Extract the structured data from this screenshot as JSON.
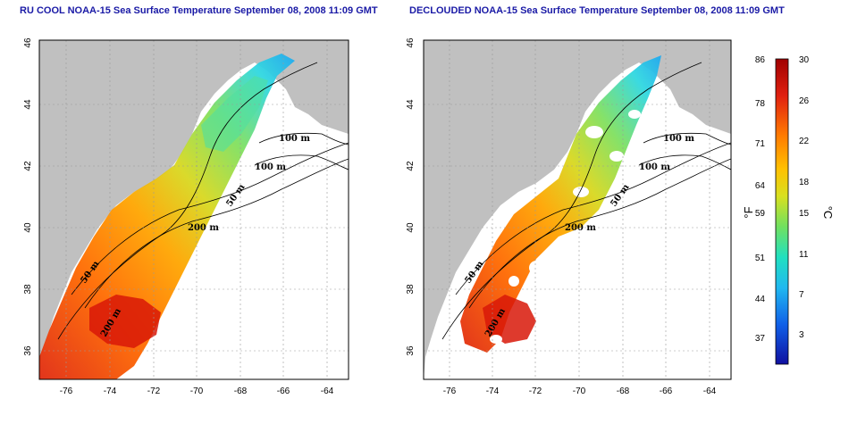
{
  "titles": {
    "left": "RU COOL NOAA-15 Sea Surface Temperature September 08, 2008 11:09 GMT",
    "right": "DECLOUDED NOAA-15 Sea Surface Temperature September 08, 2008 11:09 GMT"
  },
  "map_axes": {
    "lon_ticks": [
      "-76",
      "-74",
      "-72",
      "-70",
      "-68",
      "-66",
      "-64"
    ],
    "lat_ticks": [
      "46",
      "44",
      "42",
      "40",
      "38",
      "36"
    ]
  },
  "contour_labels": {
    "left": [
      "100 m",
      "100 m",
      "50 m",
      "200 m",
      "50 m",
      "200 m"
    ],
    "right": [
      "100 m",
      "100 m",
      "50 m",
      "200 m",
      "50 m",
      "200 m"
    ]
  },
  "colorbar": {
    "fahrenheit_ticks": [
      "86",
      "78",
      "71",
      "64",
      "59",
      "51",
      "44",
      "37"
    ],
    "celsius_ticks": [
      "30",
      "26",
      "22",
      "18",
      "15",
      "11",
      "7",
      "3"
    ],
    "fahrenheit_unit": "°F",
    "celsius_unit": "°C",
    "colors": [
      "#a00000",
      "#e02010",
      "#ff7a00",
      "#ffc000",
      "#d8e020",
      "#70e060",
      "#20e0c0",
      "#20b8f0",
      "#1060e8",
      "#1010a0"
    ]
  },
  "colors": {
    "land": "#c0c0c0",
    "ocean_nodata": "#ffffff",
    "title_text": "#1a1aa6"
  }
}
